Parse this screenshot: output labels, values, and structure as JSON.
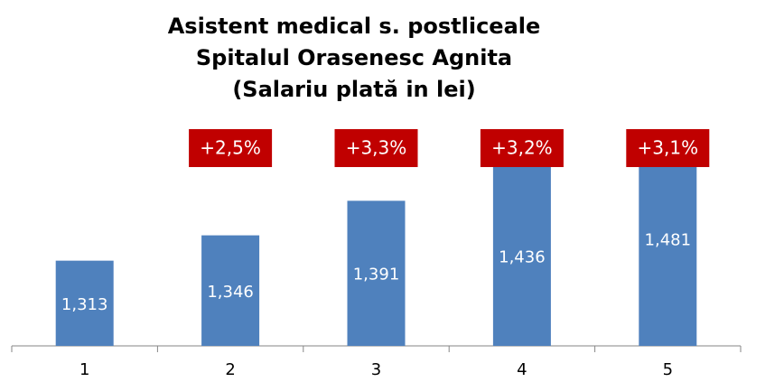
{
  "chart_data": {
    "type": "bar",
    "title": [
      "Asistent medical s. postliceale",
      "Spitalul Orasenesc Agnita",
      "(Salariu plată in lei)"
    ],
    "categories": [
      "1",
      "2",
      "3",
      "4",
      "5"
    ],
    "values": [
      1313,
      1346,
      1391,
      1436,
      1481
    ],
    "value_labels": [
      "1,313",
      "1,346",
      "1,391",
      "1,436",
      "1,481"
    ],
    "annotations": [
      null,
      "+2,5%",
      "+3,3%",
      "+3,2%",
      "+3,1%"
    ],
    "color": "#4f81bd",
    "annotation_color": "#c00000",
    "ylim": [
      1202,
      1522
    ]
  }
}
